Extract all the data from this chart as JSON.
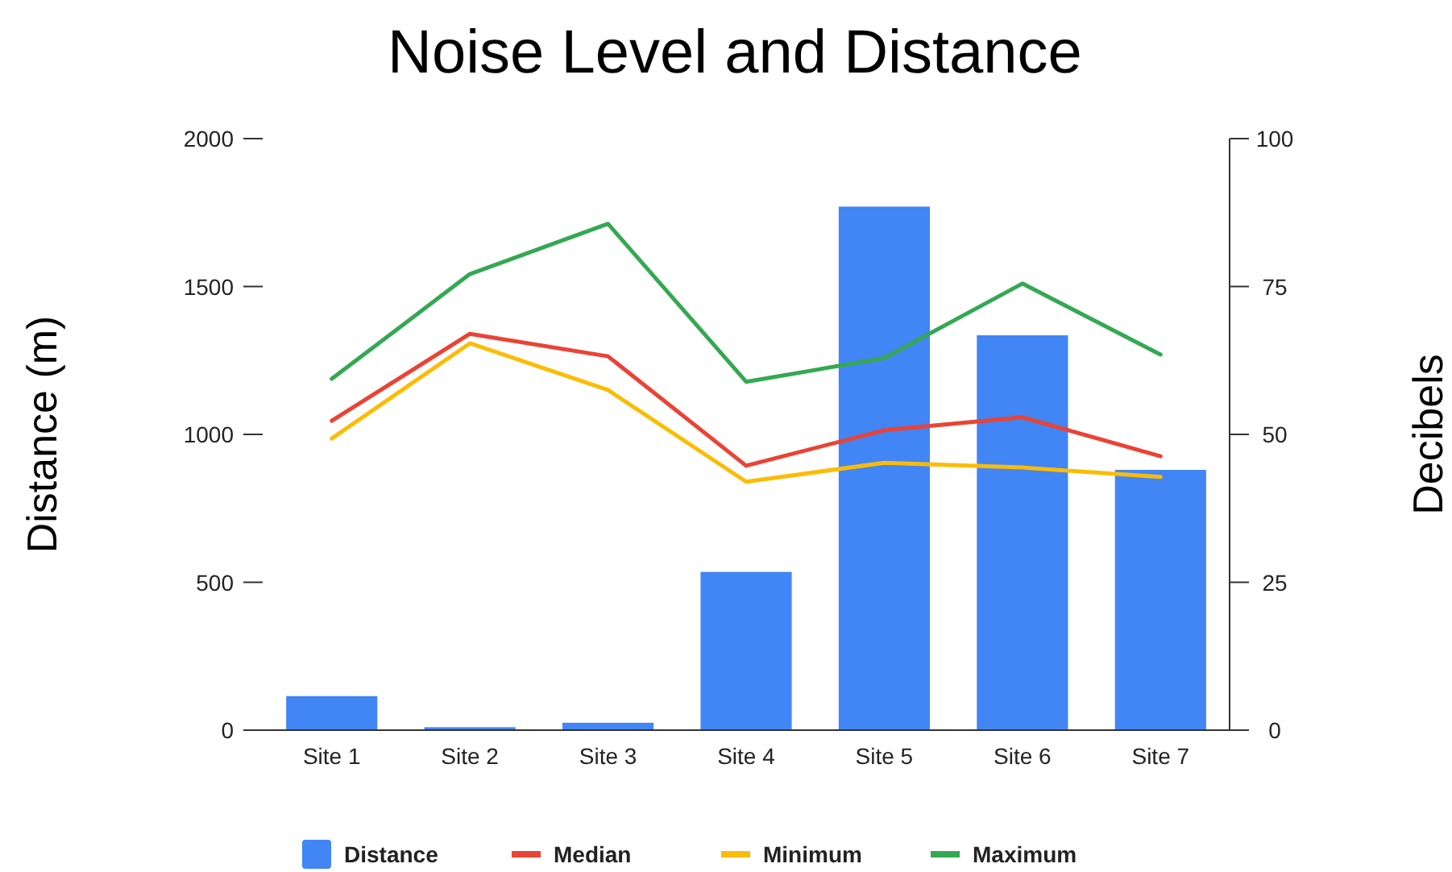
{
  "chart_data": {
    "type": "bar",
    "title": "Noise Level and Distance",
    "ylabel": "Distance (m)",
    "y2label": "Decibels",
    "categories": [
      "Site 1",
      "Site 2",
      "Site 3",
      "Site 4",
      "Site 5",
      "Site 6",
      "Site 7"
    ],
    "series": [
      {
        "name": "Distance",
        "color": "#4285f4",
        "values": [
          115,
          10,
          25,
          535,
          1770,
          1335,
          880
        ]
      },
      {
        "name": "Median",
        "type": "line",
        "axis": "y2",
        "color": "#ea4335",
        "values": [
          52.3,
          67,
          63.2,
          44.7,
          50.7,
          52.9,
          46.3
        ]
      },
      {
        "name": "Minimum",
        "type": "line",
        "axis": "y2",
        "color": "#fbbc04",
        "values": [
          49.3,
          65.4,
          57.5,
          42,
          45.2,
          44.4,
          42.8
        ]
      },
      {
        "name": "Maximum",
        "type": "line",
        "axis": "y2",
        "color": "#34a853",
        "values": [
          59.4,
          77.1,
          85.6,
          58.9,
          62.9,
          75.5,
          63.5
        ]
      }
    ],
    "ylim": [
      0,
      2000
    ],
    "yticks": [
      0,
      500,
      1000,
      1500,
      2000
    ],
    "y2lim": [
      0,
      100
    ],
    "y2ticks": [
      0,
      25,
      50,
      75,
      100
    ],
    "grid": false,
    "legend": "bottom",
    "line_style": "solid",
    "marker": "none"
  }
}
